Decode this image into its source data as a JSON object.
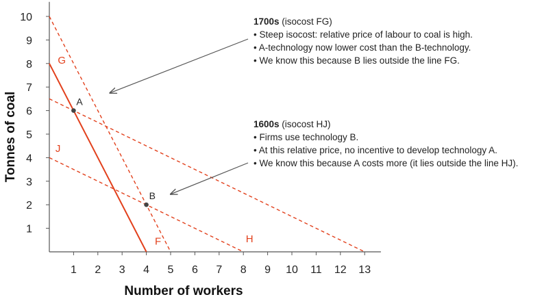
{
  "chart_data": {
    "type": "line",
    "title": "",
    "xlabel": "Number of workers",
    "ylabel": "Tonnes of coal",
    "xlim": [
      0,
      13.5
    ],
    "ylim": [
      0,
      10.5
    ],
    "x_ticks": [
      "1",
      "2",
      "3",
      "4",
      "5",
      "6",
      "7",
      "8",
      "9",
      "10",
      "11",
      "12",
      "13"
    ],
    "y_ticks": [
      "1",
      "2",
      "3",
      "4",
      "5",
      "6",
      "7",
      "8",
      "9",
      "10"
    ],
    "grid": false,
    "accent_color": "#e2401c",
    "series": [
      {
        "name": "",
        "style": "solid",
        "x": [
          0,
          4
        ],
        "y": [
          8,
          0
        ]
      },
      {
        "name": "",
        "style": "dashed",
        "x": [
          0,
          5
        ],
        "y": [
          10,
          0
        ]
      },
      {
        "name": "",
        "style": "dashed",
        "x": [
          0,
          8
        ],
        "y": [
          4,
          0
        ]
      },
      {
        "name": "",
        "style": "dashed",
        "x": [
          0,
          13
        ],
        "y": [
          6.5,
          0
        ]
      }
    ],
    "line_labels": [
      {
        "text": "G",
        "x": 0.35,
        "y": 8.0
      },
      {
        "text": "F",
        "x": 4.35,
        "y": 0.3
      },
      {
        "text": "J",
        "x": 0.25,
        "y": 4.25
      },
      {
        "text": "H",
        "x": 8.1,
        "y": 0.4
      }
    ],
    "points": [
      {
        "label": "A",
        "x": 1,
        "y": 6
      },
      {
        "label": "B",
        "x": 4,
        "y": 2
      }
    ],
    "annotations": [
      {
        "heading_bold": "1700s",
        "heading_rest": " (isocost FG)",
        "bullets": [
          "• Steep isocost: relative price of labour to coal is high.",
          "• A-technology now lower cost than the B-technology.",
          "• We know this because B lies outside the line FG."
        ],
        "arrow_to": {
          "x": 2.5,
          "y": 6.75
        }
      },
      {
        "heading_bold": "1600s",
        "heading_rest": " (isocost HJ)",
        "bullets": [
          "• Firms use technology B.",
          "• At this relative price, no incentive to develop technology A.",
          "• We know this because A costs more (it lies outside the line HJ)."
        ],
        "arrow_to": {
          "x": 5,
          "y": 2.45
        }
      }
    ]
  }
}
